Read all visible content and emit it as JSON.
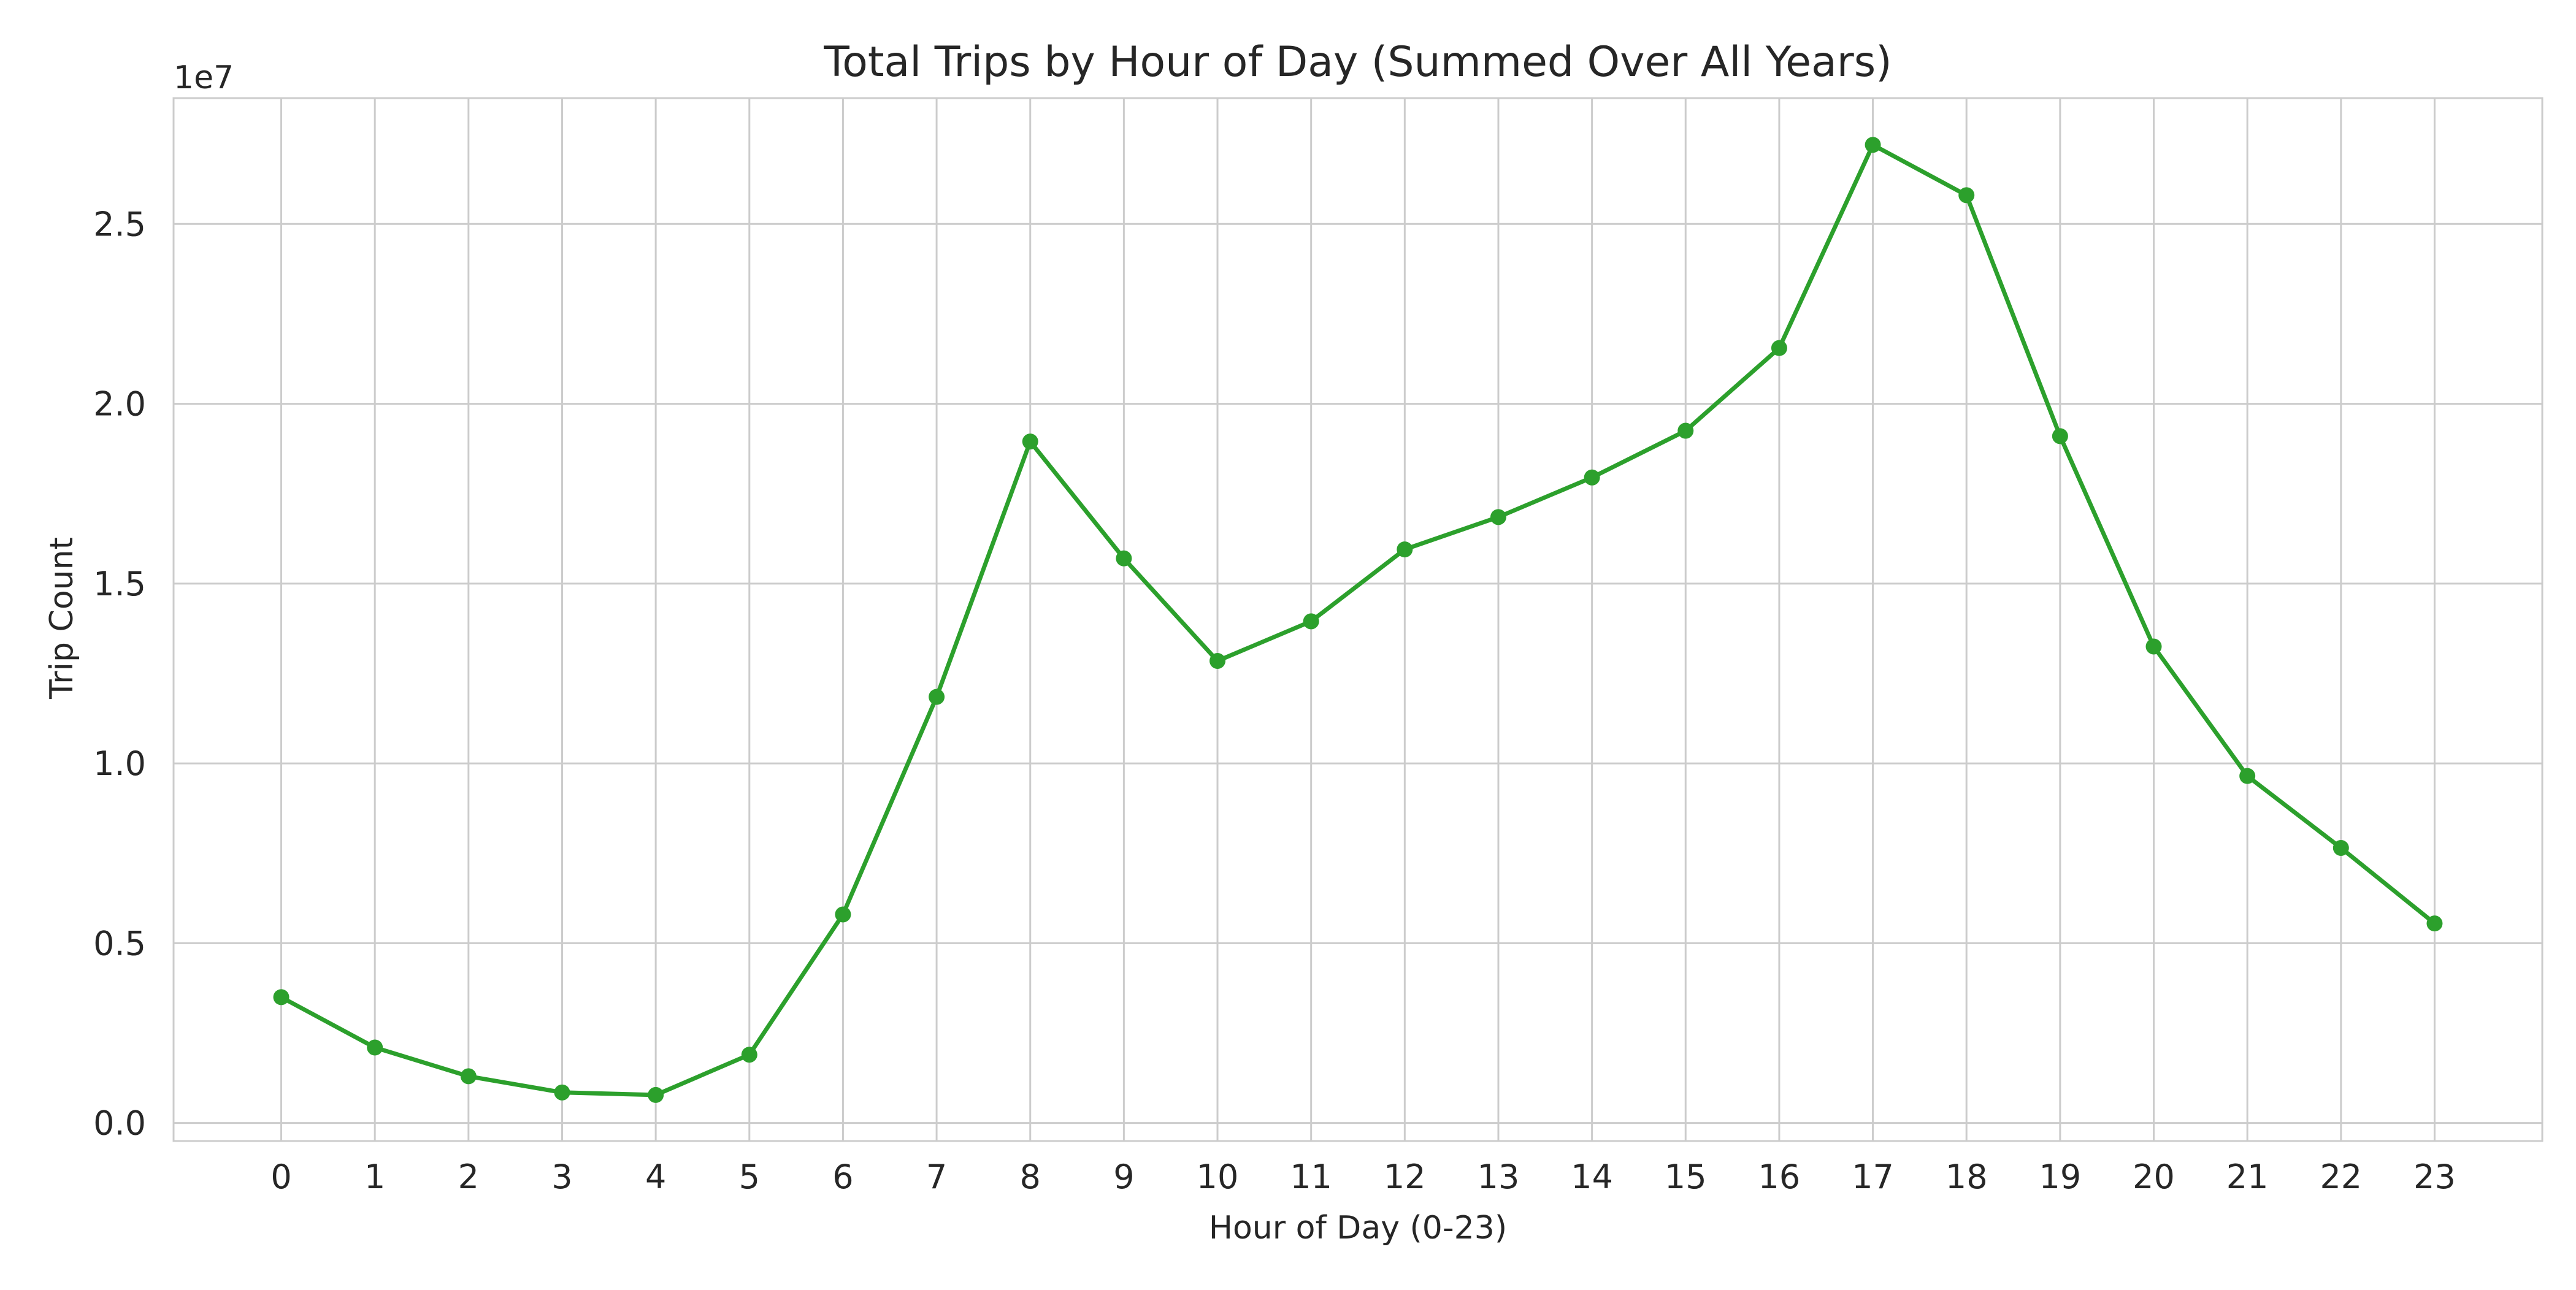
{
  "chart_data": {
    "type": "line",
    "title": "Total Trips by Hour of Day (Summed Over All Years)",
    "xlabel": "Hour of Day (0-23)",
    "ylabel": "Trip Count",
    "y_offset_text": "1e7",
    "x": [
      0,
      1,
      2,
      3,
      4,
      5,
      6,
      7,
      8,
      9,
      10,
      11,
      12,
      13,
      14,
      15,
      16,
      17,
      18,
      19,
      20,
      21,
      22,
      23
    ],
    "x_tick_labels": [
      "0",
      "1",
      "2",
      "3",
      "4",
      "5",
      "6",
      "7",
      "8",
      "9",
      "10",
      "11",
      "12",
      "13",
      "14",
      "15",
      "16",
      "17",
      "18",
      "19",
      "20",
      "21",
      "22",
      "23"
    ],
    "y_ticks": [
      0.0,
      0.5,
      1.0,
      1.5,
      2.0,
      2.5
    ],
    "y_tick_labels": [
      "0.0",
      "0.5",
      "1.0",
      "1.5",
      "2.0",
      "2.5"
    ],
    "series": [
      {
        "values": [
          3.5,
          2.1,
          1.3,
          0.85,
          0.78,
          1.9,
          5.8,
          11.85,
          18.95,
          15.7,
          12.85,
          13.95,
          15.95,
          16.85,
          17.95,
          19.25,
          21.55,
          27.2,
          25.8,
          19.1,
          13.25,
          9.65,
          7.65,
          5.55
        ],
        "values_scale": 1000000,
        "color": "#2ca02c",
        "marker": "circle"
      }
    ],
    "xlim": [
      -1.15,
      24.15
    ],
    "ylim": [
      -500000,
      28500000
    ],
    "grid": true,
    "legend": "none"
  }
}
